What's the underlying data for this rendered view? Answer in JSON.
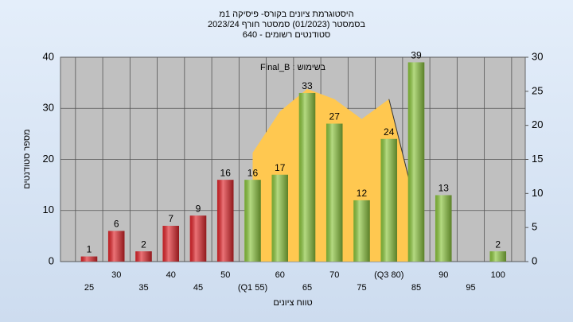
{
  "chart_data": {
    "type": "bar",
    "title": [
      "היסטוגרמת ציונים בקורס- פיסיקה 1מ",
      "בסמסטר (01/2023) סמסטר חורף 2023/24",
      "סטודנטים רשומים - 640"
    ],
    "annotation": "בשימוש : Final_B",
    "x_label": "טווח ציונים",
    "y_label": "מספר סטודנטים",
    "categories": [
      "25",
      "30",
      "35",
      "40",
      "45",
      "50",
      "(Q1 55)",
      "60",
      "65",
      "70",
      "75",
      "(Q3 80)",
      "85",
      "90",
      "95",
      "100"
    ],
    "values": [
      1,
      6,
      2,
      7,
      9,
      16,
      16,
      17,
      33,
      27,
      12,
      24,
      39,
      13,
      null,
      2
    ],
    "colors": [
      "#e0262c",
      "#e0262c",
      "#e0262c",
      "#e0262c",
      "#e0262c",
      "#e0262c",
      "#8cc63e",
      "#8cc63e",
      "#8cc63e",
      "#8cc63e",
      "#8cc63e",
      "#8cc63e",
      "#8cc63e",
      "#8cc63e",
      "#8cc63e",
      "#8cc63e"
    ],
    "area": {
      "color": "#ffc850",
      "values": [
        null,
        null,
        null,
        null,
        null,
        null,
        21.3,
        29.4,
        33.8,
        31.8,
        27.9,
        31.8,
        10.5,
        null,
        null,
        null
      ]
    },
    "ylim": [
      0,
      40
    ],
    "yticks": [
      0,
      10,
      20,
      30,
      40
    ],
    "y2lim": [
      0,
      30
    ],
    "y2ticks": [
      0,
      5,
      10,
      15,
      20,
      25,
      30
    ],
    "grid": true
  }
}
